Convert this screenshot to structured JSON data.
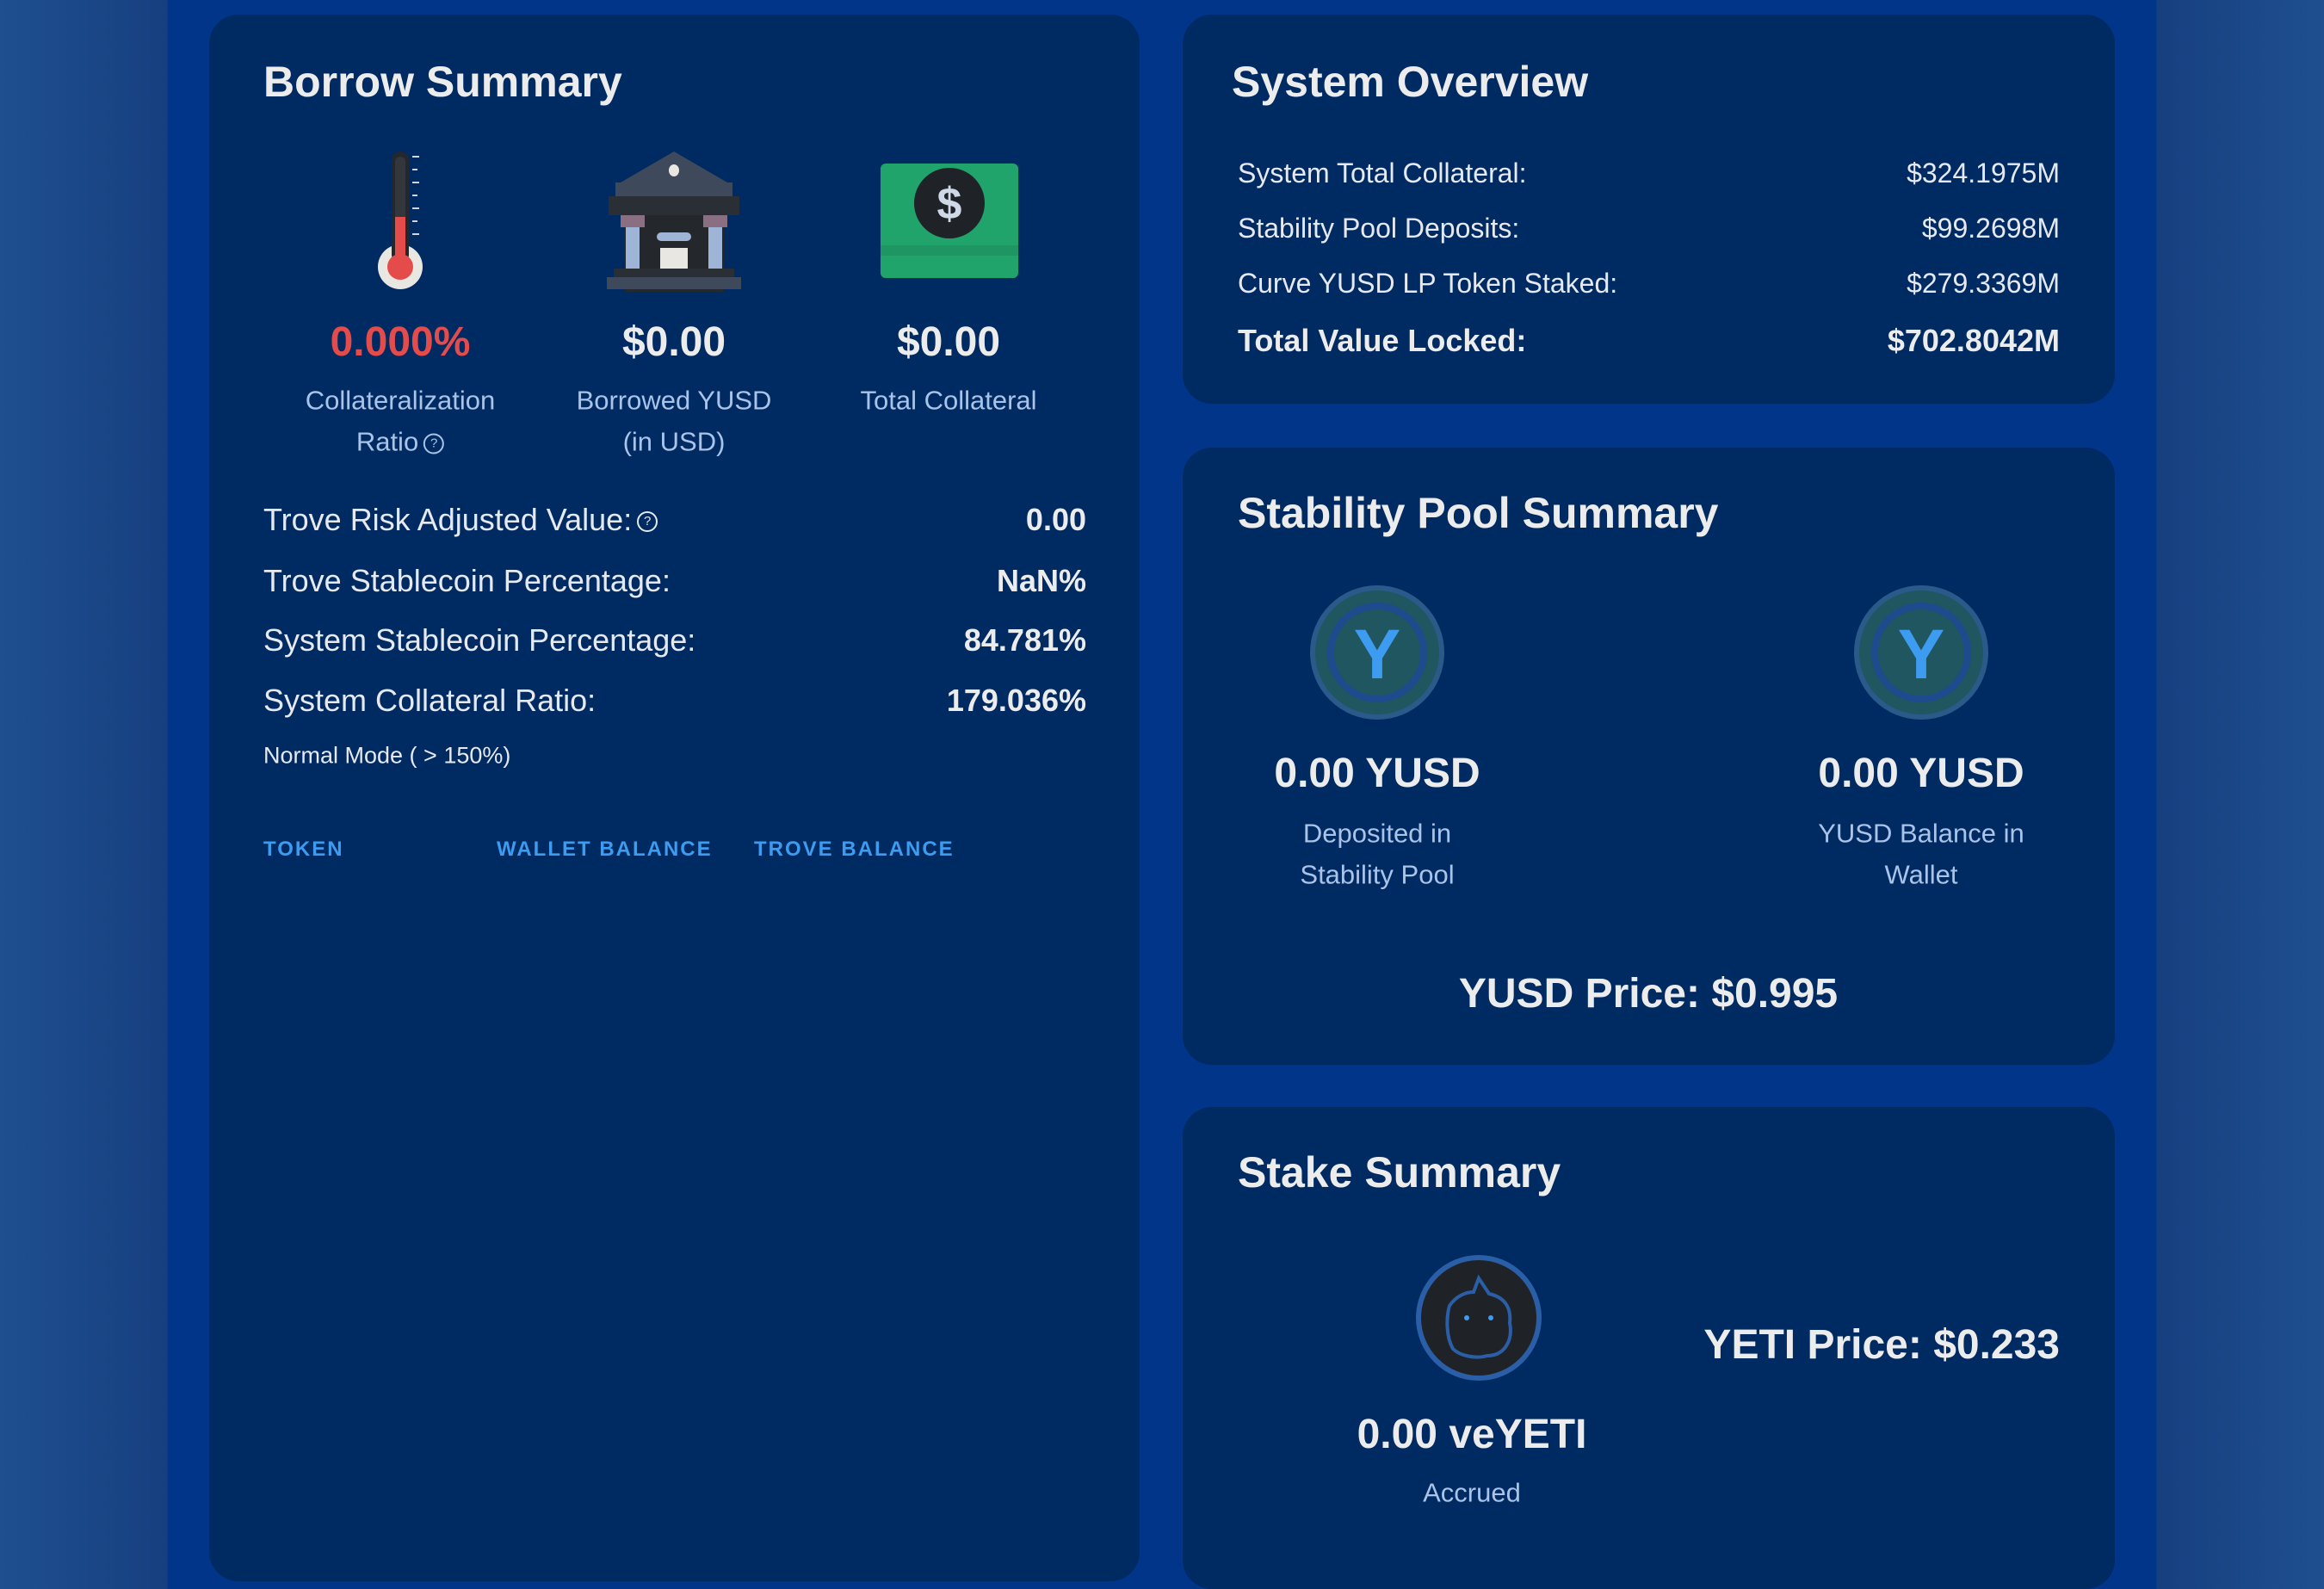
{
  "borrow_summary": {
    "title": "Borrow Summary",
    "stats": [
      {
        "icon": "thermometer-icon",
        "value": "0.000%",
        "label_line1": "Collateralization",
        "label_line2": "Ratio",
        "value_color": "#e44c4c"
      },
      {
        "icon": "bank-icon",
        "value": "$0.00",
        "label_line1": "Borrowed YUSD",
        "label_line2": "(in USD)"
      },
      {
        "icon": "dollar-bill-icon",
        "value": "$0.00",
        "label_line1": "Total Collateral"
      }
    ],
    "rows": [
      {
        "label": "Trove Risk Adjusted Value:",
        "value": "0.00"
      },
      {
        "label": "Trove Stablecoin Percentage:",
        "value": "NaN%"
      },
      {
        "label": "System Stablecoin Percentage:",
        "value": "84.781%"
      },
      {
        "label": "System Collateral Ratio:",
        "value": "179.036%"
      }
    ],
    "mode_text": "Normal Mode ( > 150%)",
    "table_headers": [
      "TOKEN",
      "WALLET BALANCE",
      "TROVE BALANCE"
    ],
    "help_glyph": "?"
  },
  "system_overview": {
    "title": "System Overview",
    "rows": [
      {
        "label": "System Total Collateral:",
        "value": "$324.1975M"
      },
      {
        "label": "Stability Pool Deposits:",
        "value": "$99.2698M"
      },
      {
        "label": "Curve YUSD LP Token Staked:",
        "value": "$279.3369M"
      },
      {
        "label": "Total Value Locked:",
        "value": "$702.8042M"
      }
    ]
  },
  "stability_pool": {
    "title": "Stability Pool Summary",
    "items": [
      {
        "value": "0.00 YUSD",
        "label_line1": "Deposited in",
        "label_line2": "Stability Pool"
      },
      {
        "value": "0.00 YUSD",
        "label_line1": "YUSD Balance in",
        "label_line2": "Wallet"
      }
    ],
    "logo_letter": "Y",
    "price": "YUSD Price: $0.995"
  },
  "stake_summary": {
    "title": "Stake Summary",
    "value": "0.00 veYETI",
    "label": "Accrued",
    "price": "YETI Price: $0.233"
  },
  "colors": {
    "card": "#002a62",
    "background": "#00358a",
    "accent": "#3d9bf0",
    "danger": "#e44c4c",
    "label": "#a9c4e8"
  }
}
